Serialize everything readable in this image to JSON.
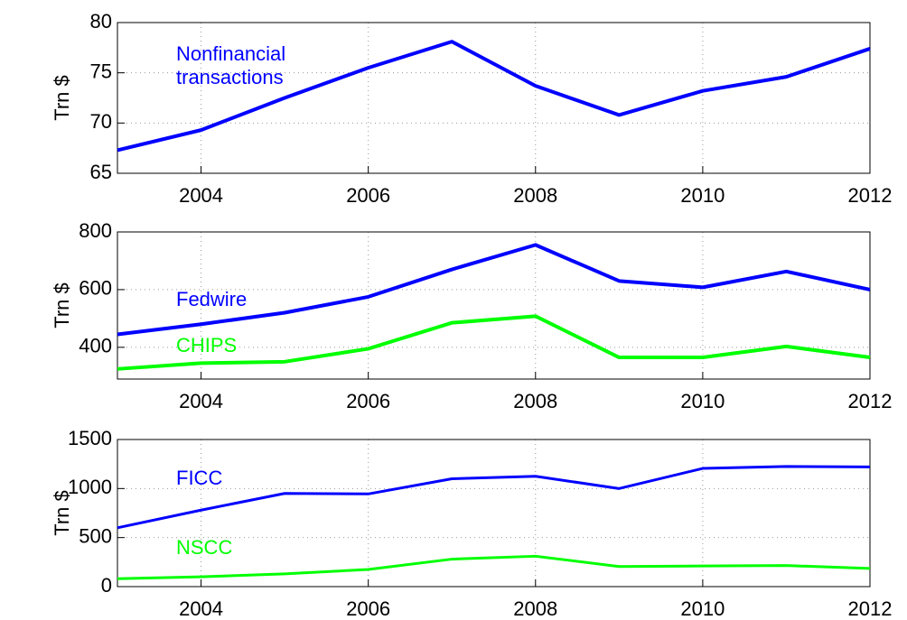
{
  "chart_data": [
    {
      "type": "line",
      "ylabel": "Trn $",
      "x": [
        2003,
        2004,
        2005,
        2006,
        2007,
        2008,
        2009,
        2010,
        2011,
        2012
      ],
      "xlim": [
        2003,
        2012
      ],
      "xticks": [
        2004,
        2006,
        2008,
        2010,
        2012
      ],
      "ylim": [
        65,
        80
      ],
      "yticks": [
        65,
        70,
        75,
        80
      ],
      "grid": true,
      "series": [
        {
          "name": "Nonfinancial transactions",
          "color": "#0000ff",
          "values": [
            67.3,
            69.3,
            72.5,
            75.5,
            78.1,
            73.7,
            70.8,
            73.2,
            74.6,
            77.4
          ]
        }
      ]
    },
    {
      "type": "line",
      "ylabel": "Trn $",
      "x": [
        2003,
        2004,
        2005,
        2006,
        2007,
        2008,
        2009,
        2010,
        2011,
        2012
      ],
      "xlim": [
        2003,
        2012
      ],
      "xticks": [
        2004,
        2006,
        2008,
        2010,
        2012
      ],
      "ylim": [
        290,
        800
      ],
      "yticks": [
        400,
        600,
        800
      ],
      "grid": true,
      "series": [
        {
          "name": "Fedwire",
          "color": "#0000ff",
          "values": [
            445,
            480,
            520,
            575,
            670,
            755,
            630,
            608,
            663,
            600
          ]
        },
        {
          "name": "CHIPS",
          "color": "#00ff00",
          "values": [
            325,
            345,
            350,
            395,
            485,
            508,
            365,
            365,
            403,
            365
          ]
        }
      ]
    },
    {
      "type": "line",
      "ylabel": "Trn $",
      "x": [
        2003,
        2004,
        2005,
        2006,
        2007,
        2008,
        2009,
        2010,
        2011,
        2012
      ],
      "xlim": [
        2003,
        2012
      ],
      "xticks": [
        2004,
        2006,
        2008,
        2010,
        2012
      ],
      "ylim": [
        0,
        1500
      ],
      "yticks": [
        0,
        500,
        1000,
        1500
      ],
      "grid": true,
      "series": [
        {
          "name": "FICC",
          "color": "#0000ff",
          "values": [
            600,
            780,
            950,
            945,
            1100,
            1125,
            1000,
            1205,
            1225,
            1220
          ]
        },
        {
          "name": "NSCC",
          "color": "#00ff00",
          "values": [
            80,
            100,
            130,
            175,
            280,
            310,
            205,
            210,
            215,
            185
          ]
        }
      ]
    }
  ]
}
